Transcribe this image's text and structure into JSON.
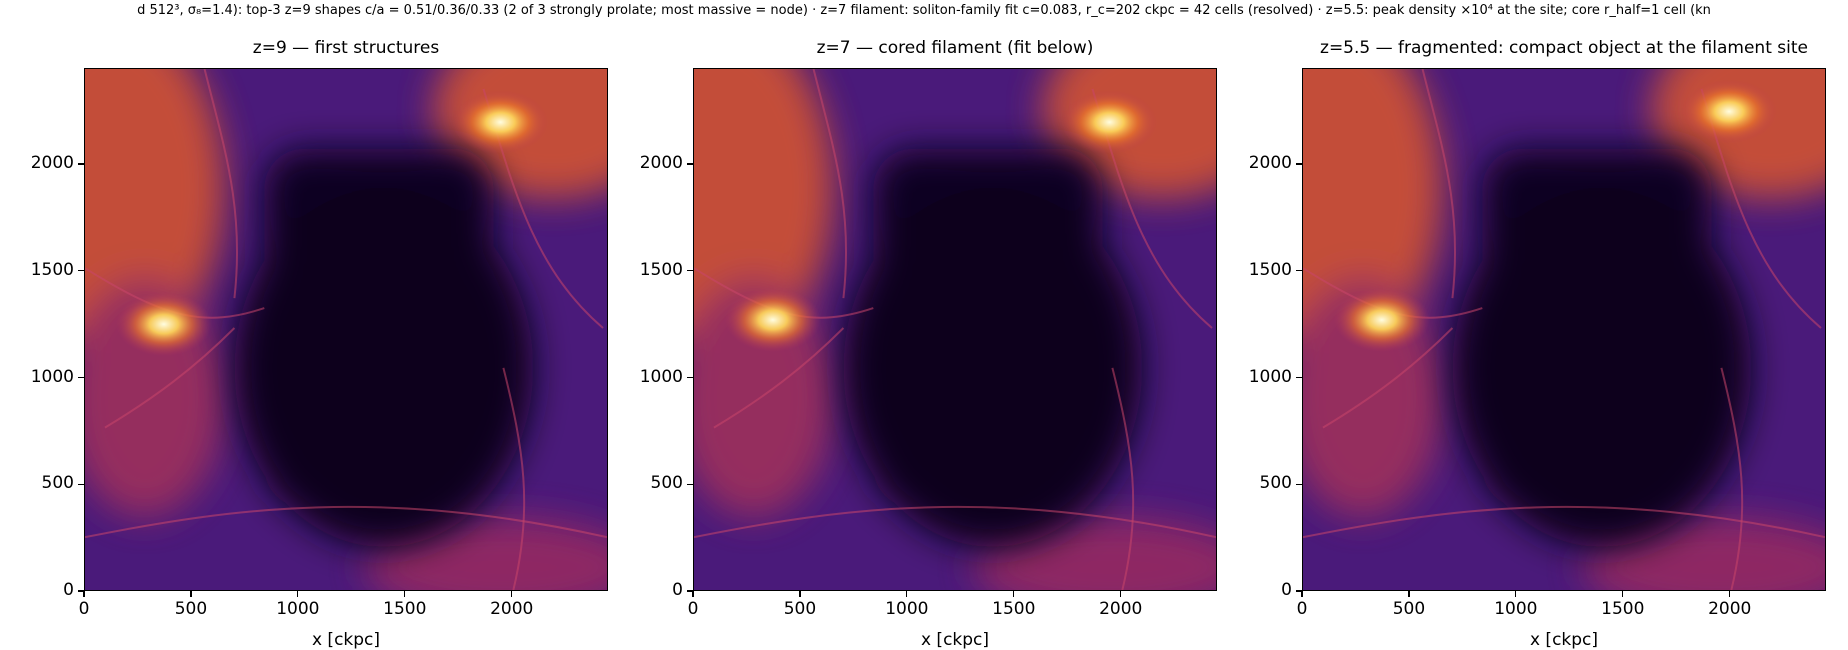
{
  "figure": {
    "suptitle": "d 512³, σ₈=1.4): top-3 z=9 shapes c/a = 0.51/0.36/0.33 (2 of 3 strongly prolate; most massive = node) · z=7 filament: soliton-family fit c=0.083, r_c=202 ckpc = 42 cells (resolved) · z=5.5: peak density ×10⁴ at the site; core r_half=1 cell (kn"
  },
  "chart_data": [
    {
      "type": "heatmap",
      "title": "z=9 — first structures",
      "xlabel": "x [ckpc]",
      "ylabel": "",
      "xlim": [
        0,
        2450
      ],
      "ylim": [
        0,
        2450
      ],
      "xticks": [
        0,
        500,
        1000,
        1500,
        2000
      ],
      "yticks": [
        0,
        500,
        1000,
        1500,
        2000
      ],
      "colormap": "inferno",
      "features": [
        {
          "label": "most massive node",
          "x": 370,
          "y": 1250
        },
        {
          "label": "upper-right halo",
          "x": 1950,
          "y": 2200
        }
      ]
    },
    {
      "type": "heatmap",
      "title": "z=7 — cored filament (fit below)",
      "xlabel": "x [ckpc]",
      "ylabel": "",
      "xlim": [
        0,
        2450
      ],
      "ylim": [
        0,
        2450
      ],
      "xticks": [
        0,
        500,
        1000,
        1500,
        2000
      ],
      "yticks": [
        0,
        500,
        1000,
        1500,
        2000
      ],
      "colormap": "inferno",
      "features": [
        {
          "label": "node",
          "x": 370,
          "y": 1270
        },
        {
          "label": "upper-right halo",
          "x": 1950,
          "y": 2200
        }
      ]
    },
    {
      "type": "heatmap",
      "title": "z=5.5 — fragmented: compact object at the filament site",
      "xlabel": "x [ckpc]",
      "ylabel": "",
      "xlim": [
        0,
        2450
      ],
      "ylim": [
        0,
        2450
      ],
      "xticks": [
        0,
        500,
        1000,
        1500,
        2000
      ],
      "yticks": [
        0,
        500,
        1000,
        1500,
        2000
      ],
      "colormap": "inferno",
      "features": [
        {
          "label": "node",
          "x": 370,
          "y": 1270
        },
        {
          "label": "upper-right halo",
          "x": 2000,
          "y": 2250
        }
      ]
    }
  ]
}
